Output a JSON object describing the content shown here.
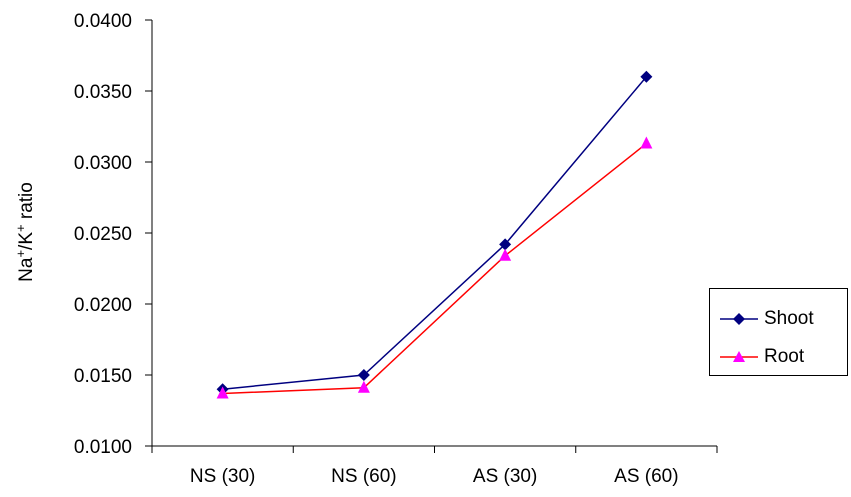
{
  "chart_data": {
    "type": "line",
    "categories": [
      "NS (30)",
      "NS (60)",
      "AS (30)",
      "AS (60)"
    ],
    "ylabel": "Na+/K+ ratio",
    "ylabel_parts": [
      "Na",
      "+",
      "/K",
      "+",
      " ratio"
    ],
    "ylim": [
      0.01,
      0.04
    ],
    "yticks": [
      "0.0100",
      "0.0150",
      "0.0200",
      "0.0250",
      "0.0300",
      "0.0350",
      "0.0400"
    ],
    "grid": false,
    "legend_position": "right",
    "series": [
      {
        "name": "Shoot",
        "values": [
          0.014,
          0.015,
          0.0242,
          0.036
        ],
        "color": "#000080",
        "marker": "diamond"
      },
      {
        "name": "Root",
        "values": [
          0.0137,
          0.0141,
          0.0234,
          0.0313
        ],
        "color": "#ff0000",
        "marker_color": "#ff00ff",
        "marker": "triangle"
      }
    ]
  }
}
